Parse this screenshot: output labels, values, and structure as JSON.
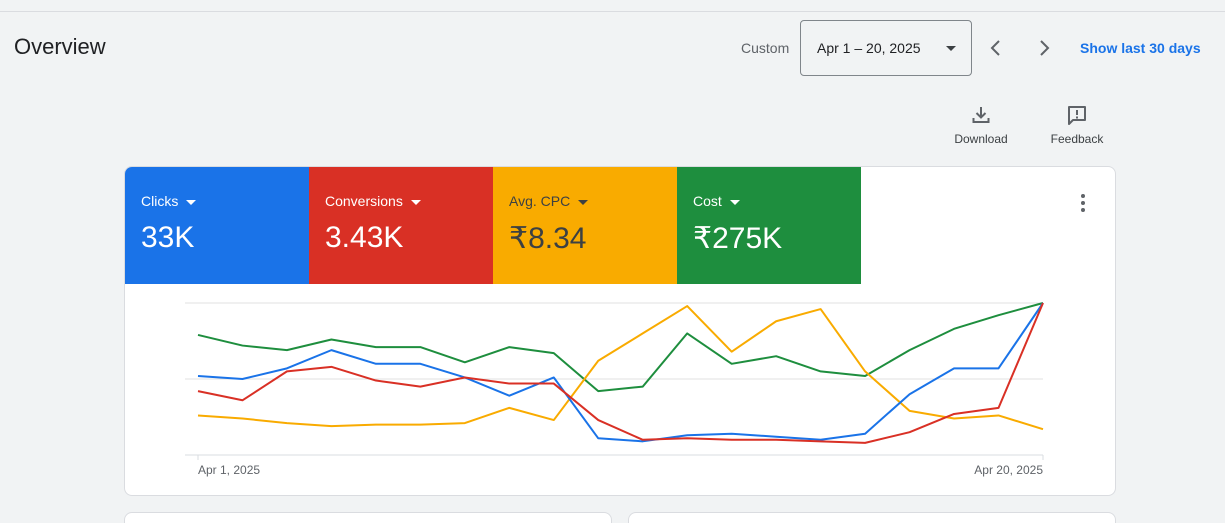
{
  "header": {
    "title": "Overview",
    "custom_label": "Custom",
    "date_range": "Apr 1 – 20, 2025",
    "show_last": "Show last 30 days"
  },
  "tools": {
    "download": "Download",
    "feedback": "Feedback"
  },
  "metrics": [
    {
      "label": "Clicks",
      "value": "33K",
      "color": "#1a73e8"
    },
    {
      "label": "Conversions",
      "value": "3.43K",
      "color": "#d93025"
    },
    {
      "label": "Avg. CPC",
      "value": "₹8.34",
      "color": "#f9ab00"
    },
    {
      "label": "Cost",
      "value": "₹275K",
      "color": "#1e8e3e"
    }
  ],
  "chart_data": {
    "type": "line",
    "x": [
      "Apr 1, 2025",
      "Apr 2",
      "Apr 3",
      "Apr 4",
      "Apr 5",
      "Apr 6",
      "Apr 7",
      "Apr 8",
      "Apr 9",
      "Apr 10",
      "Apr 11",
      "Apr 12",
      "Apr 13",
      "Apr 14",
      "Apr 15",
      "Apr 16",
      "Apr 17",
      "Apr 18",
      "Apr 19",
      "Apr 20, 2025"
    ],
    "x_tick_labels": [
      "Apr 1, 2025",
      "Apr 20, 2025"
    ],
    "grid": true,
    "legend": "none",
    "series": [
      {
        "name": "Clicks",
        "color": "#1a73e8",
        "values": [
          0.52,
          0.5,
          0.57,
          0.69,
          0.6,
          0.6,
          0.51,
          0.39,
          0.51,
          0.11,
          0.09,
          0.13,
          0.14,
          0.12,
          0.1,
          0.14,
          0.4,
          0.57,
          0.57,
          1.0
        ]
      },
      {
        "name": "Conversions",
        "color": "#d93025",
        "values": [
          0.42,
          0.36,
          0.55,
          0.58,
          0.49,
          0.45,
          0.51,
          0.47,
          0.47,
          0.23,
          0.1,
          0.11,
          0.1,
          0.1,
          0.09,
          0.08,
          0.15,
          0.27,
          0.31,
          1.0
        ]
      },
      {
        "name": "Avg. CPC",
        "color": "#f9ab00",
        "values": [
          0.26,
          0.24,
          0.21,
          0.19,
          0.2,
          0.2,
          0.21,
          0.31,
          0.23,
          0.62,
          0.8,
          0.98,
          0.68,
          0.88,
          0.96,
          0.55,
          0.29,
          0.24,
          0.26,
          0.17
        ]
      },
      {
        "name": "Cost",
        "color": "#1e8e3e",
        "values": [
          0.79,
          0.72,
          0.69,
          0.76,
          0.71,
          0.71,
          0.61,
          0.71,
          0.67,
          0.42,
          0.45,
          0.8,
          0.6,
          0.65,
          0.55,
          0.52,
          0.69,
          0.83,
          0.92,
          1.0
        ]
      }
    ]
  }
}
